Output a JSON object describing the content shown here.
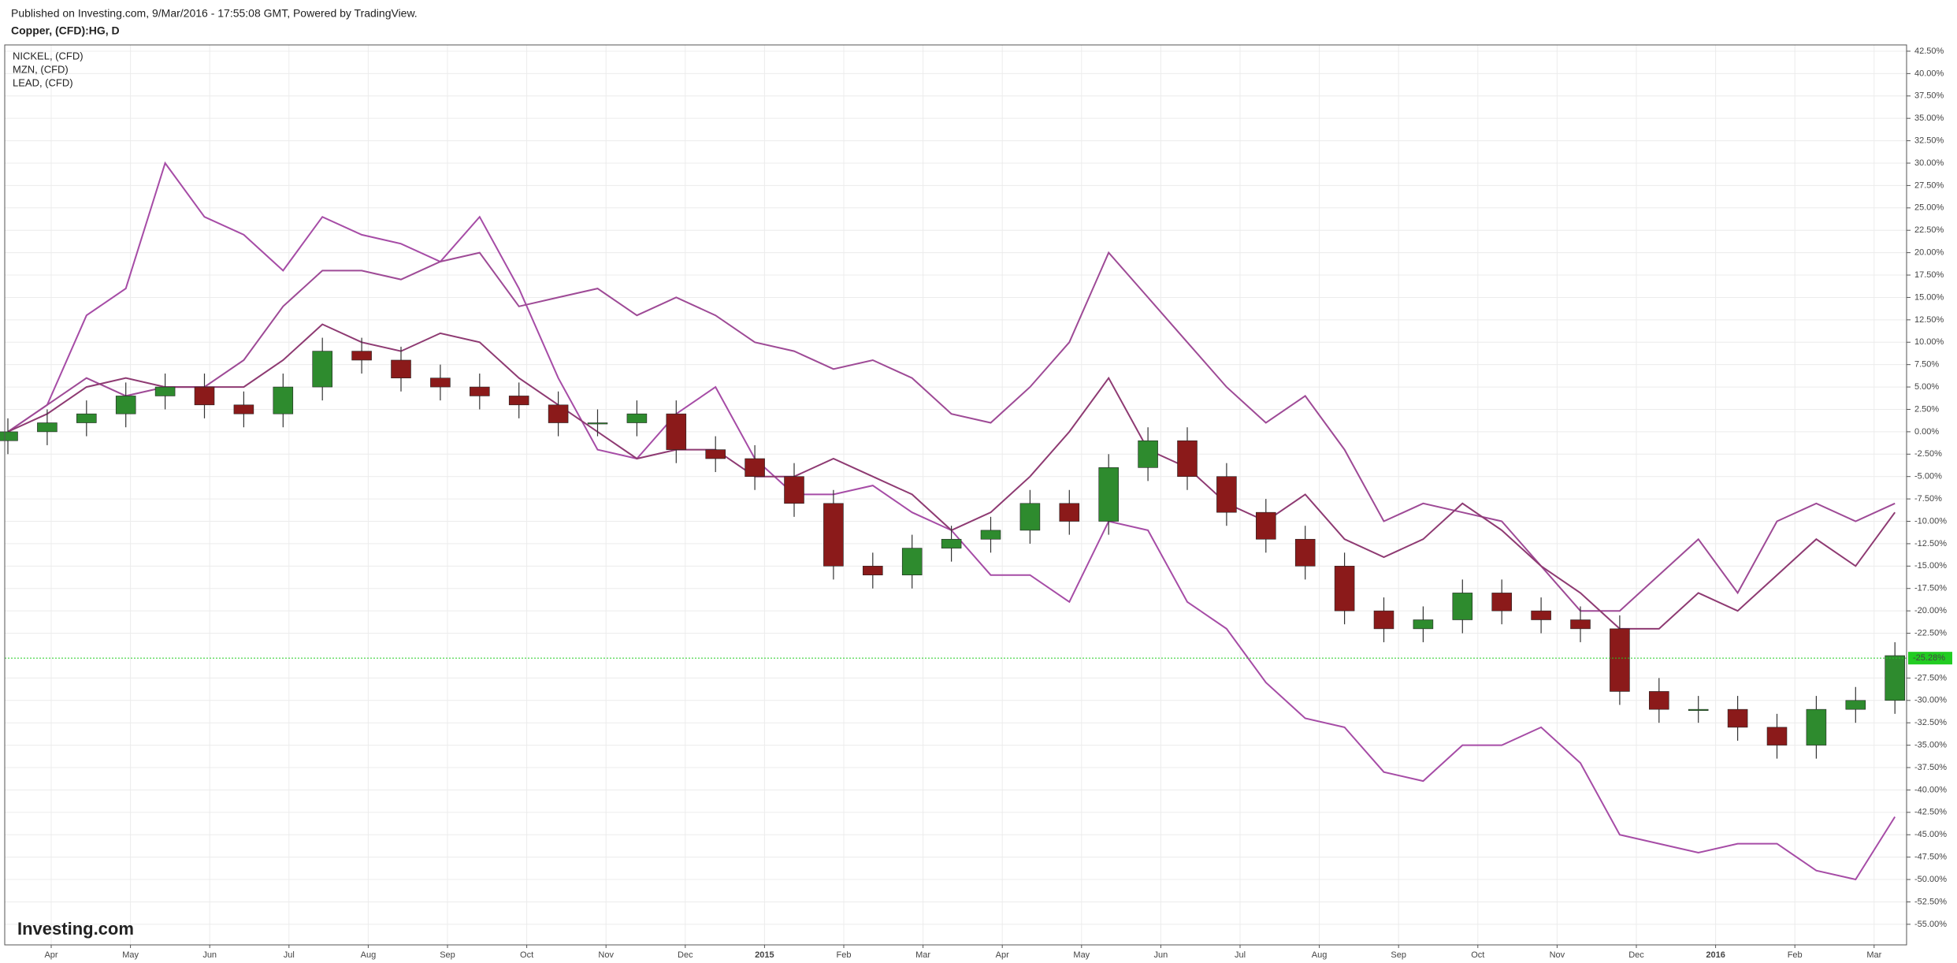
{
  "header": {
    "published": "Published on Investing.com, 9/Mar/2016 - 17:55:08 GMT, Powered by TradingView.",
    "symbol": "Copper, (CFD):HG, D"
  },
  "chart_data": {
    "type": "candlestick",
    "watermark": "Investing.com",
    "legend_position": "upper left",
    "grid": true,
    "ylim": [
      -57.3,
      43.2
    ],
    "xtick_labels": [
      "Apr",
      "May",
      "Jun",
      "Jul",
      "Aug",
      "Sep",
      "Oct",
      "Nov",
      "Dec",
      "2015",
      "Feb",
      "Mar",
      "Apr",
      "May",
      "Jun",
      "Jul",
      "Aug",
      "Sep",
      "Oct",
      "Nov",
      "Dec",
      "2016",
      "Feb",
      "Mar"
    ],
    "yticks": [
      {
        "value": 42.5,
        "label": "42.50%"
      },
      {
        "value": 40,
        "label": "40.00%"
      },
      {
        "value": 37.5,
        "label": "37.50%"
      },
      {
        "value": 35,
        "label": "35.00%"
      },
      {
        "value": 32.5,
        "label": "32.50%"
      },
      {
        "value": 30,
        "label": "30.00%"
      },
      {
        "value": 27.5,
        "label": "27.50%"
      },
      {
        "value": 25,
        "label": "25.00%"
      },
      {
        "value": 22.5,
        "label": "22.50%"
      },
      {
        "value": 20,
        "label": "20.00%"
      },
      {
        "value": 17.5,
        "label": "17.50%"
      },
      {
        "value": 15,
        "label": "15.00%"
      },
      {
        "value": 12.5,
        "label": "12.50%"
      },
      {
        "value": 10,
        "label": "10.00%"
      },
      {
        "value": 7.5,
        "label": "7.50%"
      },
      {
        "value": 5,
        "label": "5.00%"
      },
      {
        "value": 2.5,
        "label": "2.50%"
      },
      {
        "value": 0,
        "label": "0.00%"
      },
      {
        "value": -2.5,
        "label": "-2.50%"
      },
      {
        "value": -5,
        "label": "-5.00%"
      },
      {
        "value": -7.5,
        "label": "-7.50%"
      },
      {
        "value": -10,
        "label": "-10.00%"
      },
      {
        "value": -12.5,
        "label": "-12.50%"
      },
      {
        "value": -15,
        "label": "-15.00%"
      },
      {
        "value": -17.5,
        "label": "-17.50%"
      },
      {
        "value": -20,
        "label": "-20.00%"
      },
      {
        "value": -22.5,
        "label": "-22.50%"
      },
      {
        "value": -27.5,
        "label": "-27.50%"
      },
      {
        "value": -30,
        "label": "-30.00%"
      },
      {
        "value": -32.5,
        "label": "-32.50%"
      },
      {
        "value": -35,
        "label": "-35.00%"
      },
      {
        "value": -37.5,
        "label": "-37.50%"
      },
      {
        "value": -40,
        "label": "-40.00%"
      },
      {
        "value": -42.5,
        "label": "-42.50%"
      },
      {
        "value": -45,
        "label": "-45.00%"
      },
      {
        "value": -47.5,
        "label": "-47.50%"
      },
      {
        "value": -50,
        "label": "-50.00%"
      },
      {
        "value": -52.5,
        "label": "-52.50%"
      },
      {
        "value": -55,
        "label": "-55.00%"
      }
    ],
    "last": {
      "value": -25.28,
      "label": "-25.28%",
      "color": "#22cc22"
    },
    "candles": {
      "up_color": "#2e8b2e",
      "down_color": "#8b1a1a",
      "open": [
        -1,
        0,
        1,
        2,
        4,
        5,
        3,
        2,
        5,
        9,
        8,
        6,
        5,
        4,
        3,
        1,
        1,
        2,
        -2,
        -3,
        -5,
        -8,
        -15,
        -16,
        -13,
        -12,
        -11,
        -8,
        -10,
        -4,
        -1,
        -5,
        -9,
        -12,
        -15,
        -20,
        -22,
        -21,
        -18,
        -20,
        -21,
        -22,
        -29,
        -31,
        -31,
        -33,
        -35,
        -31,
        -30
      ],
      "high": [
        1.5,
        2.5,
        3.5,
        5.5,
        6.5,
        6.5,
        4.5,
        6.5,
        10.5,
        10.5,
        9.5,
        7.5,
        6.5,
        5.5,
        4.5,
        2.5,
        3.5,
        3.5,
        -0.5,
        -1.5,
        -3.5,
        -6.5,
        -13.5,
        -11.5,
        -10.5,
        -9.5,
        -6.5,
        -6.5,
        -2.5,
        0.5,
        0.5,
        -3.5,
        -7.5,
        -10.5,
        -13.5,
        -18.5,
        -19.5,
        -16.5,
        -16.5,
        -18.5,
        -19.5,
        -20.5,
        -27.5,
        -29.5,
        -29.5,
        -31.5,
        -29.5,
        -28.5,
        -23.5
      ],
      "low": [
        -2.5,
        -1.5,
        -0.5,
        0.5,
        2.5,
        1.5,
        0.5,
        0.5,
        3.5,
        6.5,
        4.5,
        3.5,
        2.5,
        1.5,
        -0.5,
        -0.5,
        -0.5,
        -3.5,
        -4.5,
        -6.5,
        -9.5,
        -16.5,
        -17.5,
        -17.5,
        -14.5,
        -13.5,
        -12.5,
        -11.5,
        -11.5,
        -5.5,
        -6.5,
        -10.5,
        -13.5,
        -16.5,
        -21.5,
        -23.5,
        -23.5,
        -22.5,
        -21.5,
        -22.5,
        -23.5,
        -30.5,
        -32.5,
        -32.5,
        -34.5,
        -36.5,
        -36.5,
        -32.5,
        -31.5
      ],
      "close": [
        0,
        1,
        2,
        4,
        5,
        3,
        2,
        5,
        9,
        8,
        6,
        5,
        4,
        3,
        1,
        1,
        2,
        -2,
        -3,
        -5,
        -8,
        -15,
        -16,
        -13,
        -12,
        -11,
        -8,
        -10,
        -4,
        -1,
        -5,
        -9,
        -12,
        -15,
        -20,
        -22,
        -21,
        -18,
        -20,
        -21,
        -22,
        -29,
        -31,
        -31,
        -33,
        -35,
        -31,
        -30,
        -25
      ]
    },
    "series": [
      {
        "name": "NICKEL,  (CFD)",
        "color": "#a64ca6",
        "values": [
          0,
          3,
          13,
          16,
          30,
          24,
          22,
          18,
          24,
          22,
          21,
          19,
          24,
          16,
          6,
          -2,
          -3,
          2,
          5,
          -3,
          -7,
          -7,
          -6,
          -9,
          -11,
          -16,
          -16,
          -19,
          -10,
          -11,
          -19,
          -22,
          -28,
          -32,
          -33,
          -38,
          -39,
          -35,
          -35,
          -33,
          -37,
          -45,
          -46,
          -47,
          -46,
          -46,
          -49,
          -50,
          -43
        ]
      },
      {
        "name": "MZN,  (CFD)",
        "color": "#9e4a96",
        "values": [
          0,
          3,
          6,
          4,
          5,
          5,
          8,
          14,
          18,
          18,
          17,
          19,
          20,
          14,
          15,
          16,
          13,
          15,
          13,
          10,
          9,
          7,
          8,
          6,
          2,
          1,
          5,
          10,
          20,
          15,
          10,
          5,
          1,
          4,
          -2,
          -10,
          -8,
          -9,
          -10,
          -15,
          -20,
          -20,
          -16,
          -12,
          -18,
          -10,
          -8,
          -10,
          -8
        ]
      },
      {
        "name": "LEAD,  (CFD)",
        "color": "#8e3a72",
        "values": [
          0,
          2,
          5,
          6,
          5,
          5,
          5,
          8,
          12,
          10,
          9,
          11,
          10,
          6,
          3,
          0,
          -3,
          -2,
          -2,
          -5,
          -5,
          -3,
          -5,
          -7,
          -11,
          -9,
          -5,
          0,
          6,
          -2,
          -4,
          -8,
          -10,
          -7,
          -12,
          -14,
          -12,
          -8,
          -11,
          -15,
          -18,
          -22,
          -22,
          -18,
          -20,
          -16,
          -12,
          -15,
          -9
        ]
      }
    ]
  }
}
